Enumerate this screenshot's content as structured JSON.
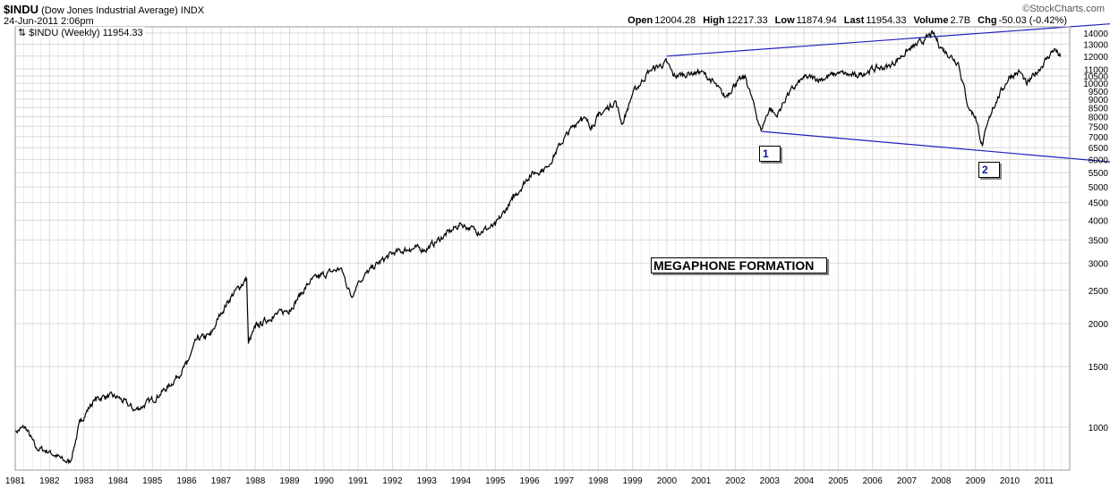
{
  "header": {
    "symbol": "$INDU",
    "name": "(Dow Jones Industrial Average)",
    "exchange": "INDX",
    "datetime": "24-Jun-2011 2:06pm",
    "watermark": "©StockCharts.com",
    "open_label": "Open",
    "open": "12004.28",
    "high_label": "High",
    "high": "12217.33",
    "low_label": "Low",
    "low": "11874.94",
    "last_label": "Last",
    "last": "11954.33",
    "volume_label": "Volume",
    "volume": "2.7B",
    "chg_label": "Chg",
    "chg": "-50.03 (-0.42%)"
  },
  "legend": {
    "text": "$INDU (Weekly) 11954.33"
  },
  "annotations": {
    "title": "MEGAPHONE FORMATION",
    "point1": "1",
    "point2": "2"
  },
  "colors": {
    "price": "#000000",
    "trendline": "#1f1fbf",
    "grid": "#d9d9d9",
    "label_text": "#0b1a8c"
  },
  "chart_data": {
    "type": "line",
    "scale": "log",
    "series": [
      {
        "name": "$INDU (Weekly)",
        "x": [
          1981.0,
          1981.3,
          1981.6,
          1982.0,
          1982.4,
          1982.6,
          1982.9,
          1983.3,
          1983.6,
          1984.0,
          1984.5,
          1985.0,
          1985.5,
          1986.0,
          1986.3,
          1986.7,
          1987.0,
          1987.3,
          1987.6,
          1987.75,
          1987.8,
          1988.0,
          1988.5,
          1989.0,
          1989.6,
          1989.9,
          1990.5,
          1990.8,
          1991.0,
          1991.5,
          1992.0,
          1992.5,
          1993.0,
          1993.5,
          1994.0,
          1994.5,
          1995.0,
          1995.5,
          1996.0,
          1996.5,
          1997.0,
          1997.5,
          1997.8,
          1998.0,
          1998.5,
          1998.7,
          1999.0,
          1999.5,
          2000.0,
          2000.2,
          2000.7,
          2001.0,
          2001.3,
          2001.7,
          2002.0,
          2002.3,
          2002.75,
          2003.0,
          2003.2,
          2003.5,
          2004.0,
          2004.5,
          2005.0,
          2005.5,
          2006.0,
          2006.5,
          2007.0,
          2007.5,
          2007.75,
          2008.0,
          2008.5,
          2008.8,
          2009.0,
          2009.2,
          2009.5,
          2010.0,
          2010.3,
          2010.5,
          2011.0,
          2011.3,
          2011.48
        ],
        "y": [
          970,
          1000,
          870,
          850,
          800,
          790,
          1040,
          1200,
          1230,
          1220,
          1120,
          1200,
          1320,
          1520,
          1800,
          1850,
          2150,
          2400,
          2600,
          2700,
          1750,
          1950,
          2100,
          2200,
          2650,
          2750,
          2900,
          2400,
          2650,
          2950,
          3200,
          3300,
          3300,
          3600,
          3900,
          3700,
          3850,
          4600,
          5400,
          5700,
          6900,
          8000,
          7500,
          8000,
          8900,
          7600,
          9300,
          10900,
          11500,
          10500,
          10700,
          10800,
          10200,
          9100,
          10000,
          10400,
          7300,
          8500,
          8000,
          9200,
          10400,
          10300,
          10700,
          10500,
          11000,
          11200,
          12400,
          13300,
          14000,
          12700,
          11500,
          8500,
          8000,
          6600,
          8500,
          10500,
          10800,
          9900,
          11500,
          12600,
          11950
        ]
      }
    ],
    "x_ticks": [
      "1981",
      "1982",
      "1983",
      "1984",
      "1985",
      "1986",
      "1987",
      "1988",
      "1989",
      "1990",
      "1991",
      "1992",
      "1993",
      "1994",
      "1995",
      "1996",
      "1997",
      "1998",
      "1999",
      "2000",
      "2001",
      "2002",
      "2003",
      "2004",
      "2005",
      "2006",
      "2007",
      "2008",
      "2009",
      "2010",
      "2011"
    ],
    "y_ticks": [
      1000,
      1500,
      2000,
      2500,
      3000,
      3500,
      4000,
      4500,
      5000,
      5500,
      6000,
      6500,
      7000,
      7500,
      8000,
      8500,
      9000,
      9500,
      10000,
      10500,
      11000,
      12000,
      13000,
      14000
    ],
    "x_range": [
      1981.0,
      2011.75
    ],
    "ylim": [
      750,
      14600
    ],
    "trendlines": [
      {
        "x": [
          2000.0,
          2011.75
        ],
        "y": [
          12000,
          14600
        ]
      },
      {
        "x": [
          2002.75,
          2011.75
        ],
        "y": [
          7250,
          6050
        ]
      }
    ],
    "grid": true,
    "y_axis_side": "right"
  }
}
